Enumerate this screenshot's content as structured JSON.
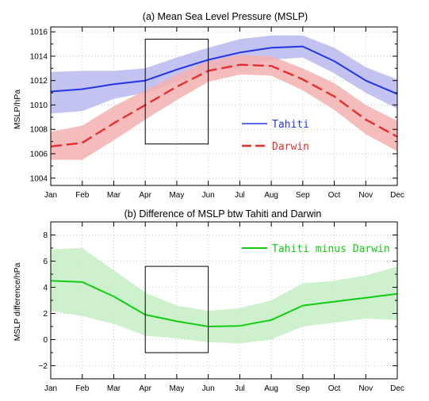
{
  "chart_data": [
    {
      "type": "line",
      "title": "(a)  Mean Sea Level Pressure (MSLP)",
      "xlabel": "",
      "ylabel": "MSLP/hPa",
      "categories": [
        "Jan",
        "Feb",
        "Mar",
        "Apr",
        "May",
        "Jun",
        "Jul",
        "Aug",
        "Sep",
        "Oct",
        "Nov",
        "Dec"
      ],
      "ylim": [
        1003.4,
        1016.4
      ],
      "yticks": [
        "1004",
        "1006",
        "1008",
        "1010",
        "1012",
        "1014",
        "1016"
      ],
      "grid": true,
      "legend_position": "right-center",
      "series": [
        {
          "name": "Tahiti",
          "color": "#2333e6",
          "band_color": "#b9b9f0",
          "line_style": "solid",
          "values": [
            1011.1,
            1011.3,
            1011.7,
            1012.0,
            1012.9,
            1013.7,
            1014.3,
            1014.7,
            1014.8,
            1013.6,
            1012.0,
            1010.9
          ],
          "upper": [
            1012.7,
            1012.8,
            1012.8,
            1013.0,
            1013.9,
            1014.7,
            1015.4,
            1015.7,
            1015.7,
            1014.7,
            1013.1,
            1012.1
          ],
          "lower": [
            1009.3,
            1009.5,
            1010.5,
            1011.0,
            1011.9,
            1012.7,
            1013.1,
            1013.7,
            1013.9,
            1012.6,
            1011.0,
            1009.7
          ]
        },
        {
          "name": "Darwin",
          "color": "#e62e2e",
          "band_color": "#f3b0b0",
          "line_style": "dashed",
          "values": [
            1006.6,
            1006.9,
            1008.5,
            1010.0,
            1011.5,
            1012.8,
            1013.3,
            1013.2,
            1012.1,
            1010.7,
            1008.8,
            1007.4
          ],
          "upper": [
            1007.8,
            1008.3,
            1009.9,
            1011.2,
            1012.5,
            1013.6,
            1014.1,
            1014.0,
            1013.0,
            1011.8,
            1010.0,
            1008.7
          ],
          "lower": [
            1005.5,
            1005.5,
            1007.1,
            1008.8,
            1010.4,
            1011.9,
            1012.5,
            1012.4,
            1011.2,
            1009.6,
            1007.6,
            1006.2
          ]
        }
      ],
      "annotation_box": {
        "x_from": "Apr",
        "x_to": "Jun",
        "y_from": 1006.8,
        "y_to": 1015.4
      }
    },
    {
      "type": "line",
      "title": "(b) Difference of MSLP btw Tahiti and Darwin",
      "xlabel": "",
      "ylabel": "MSLP difference/hPa",
      "categories": [
        "Jan",
        "Feb",
        "Mar",
        "Apr",
        "May",
        "Jun",
        "Jul",
        "Aug",
        "Sep",
        "Oct",
        "Nov",
        "Dec"
      ],
      "ylim": [
        -3,
        9
      ],
      "yticks": [
        "−2",
        "0",
        "2",
        "4",
        "6",
        "8"
      ],
      "grid": true,
      "legend_position": "top-right",
      "series": [
        {
          "name": "Tahiti minus Darwin",
          "color": "#11cc11",
          "band_color": "#c4eec4",
          "line_style": "solid",
          "values": [
            4.5,
            4.4,
            3.3,
            1.9,
            1.4,
            1.0,
            1.05,
            1.5,
            2.6,
            2.9,
            3.2,
            3.5
          ],
          "upper": [
            6.9,
            7.0,
            5.3,
            3.6,
            2.6,
            2.2,
            2.4,
            3.0,
            4.3,
            4.5,
            4.9,
            5.6
          ],
          "lower": [
            2.2,
            1.8,
            1.2,
            0.3,
            0.1,
            -0.2,
            -0.3,
            0.0,
            1.0,
            1.3,
            1.6,
            1.5
          ]
        }
      ],
      "annotation_box": {
        "x_from": "Apr",
        "x_to": "Jun",
        "y_from": -1,
        "y_to": 5.6
      }
    }
  ]
}
